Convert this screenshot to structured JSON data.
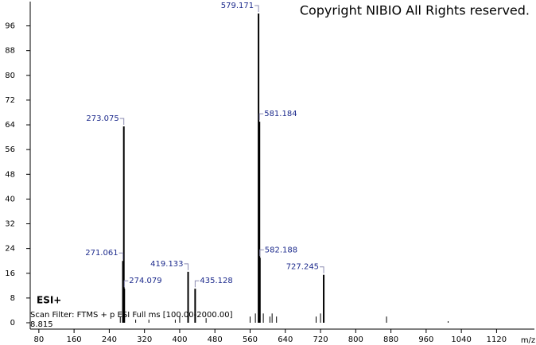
{
  "chart_data": {
    "type": "spectrum",
    "copyright": "Copyright NIBIO All Rights reserved.",
    "ion_mode": "ESI+",
    "scan_filter": "Scan Filter: FTMS + p ESI Full ms [100.00-2000.00]",
    "retention": "8.815",
    "xlabel": "m/z",
    "color": "#000000",
    "label_color": "#1c2a8c",
    "labeled_peaks": {
      "x": [
        273.075,
        271.061,
        274.079,
        419.133,
        435.128,
        579.171,
        581.184,
        582.188,
        727.245
      ],
      "values": [
        63.5,
        20,
        11,
        16.5,
        11,
        100,
        65,
        21,
        15.5
      ]
    },
    "minor_peaks": {
      "x": [
        265,
        300,
        330,
        390,
        400,
        460,
        560,
        572,
        590,
        605,
        610,
        620,
        710,
        720,
        870,
        1010
      ],
      "values": [
        2,
        1,
        1,
        1,
        2,
        1.5,
        2,
        3,
        3,
        2,
        3,
        2,
        2,
        3,
        2,
        0.5
      ]
    },
    "xlim": [
      64,
      1206
    ],
    "ylim": [
      0,
      103
    ],
    "xticks": [
      80,
      160,
      240,
      320,
      400,
      480,
      560,
      640,
      720,
      800,
      880,
      960,
      1040,
      1120
    ],
    "yticks": [
      0,
      8,
      16,
      24,
      32,
      40,
      48,
      56,
      64,
      72,
      80,
      88,
      96
    ]
  }
}
